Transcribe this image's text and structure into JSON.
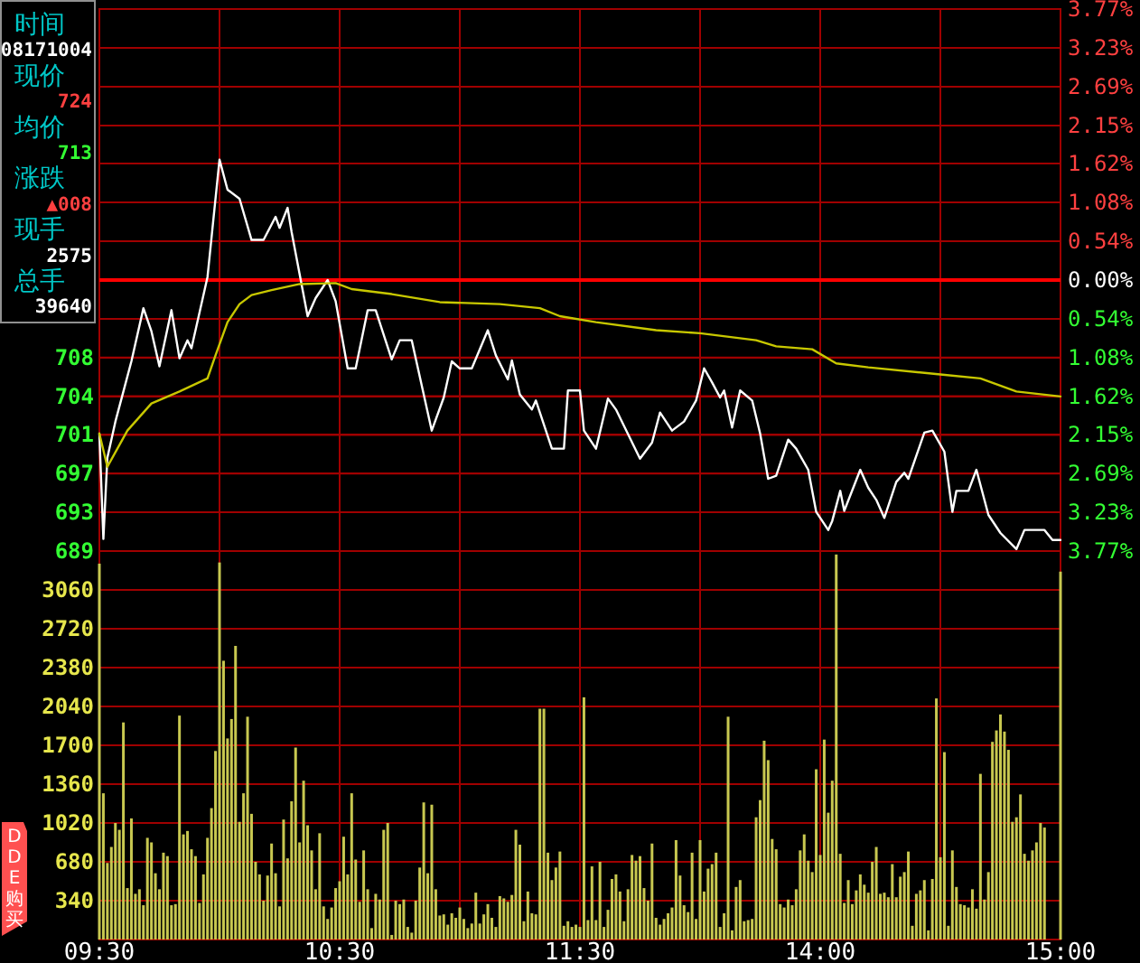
{
  "chart_data": [
    {
      "type": "line",
      "ylim": [
        689,
        743
      ],
      "yticks": [
        689,
        {
          "value": 692.86,
          "label": "693"
        },
        {
          "value": 696.71,
          "label": "697"
        },
        {
          "value": 700.57,
          "label": "701"
        },
        {
          "value": 704.43,
          "label": "704"
        },
        {
          "value": 708.29,
          "label": "708"
        }
      ],
      "y2lim": [
        -3.77,
        3.77
      ],
      "y2ticks": [
        {
          "value": -3.77,
          "label": "3.77%"
        },
        {
          "value": -3.23,
          "label": "3.23%"
        },
        {
          "value": -2.69,
          "label": "2.69%"
        },
        {
          "value": -2.15,
          "label": "2.15%"
        },
        {
          "value": -1.62,
          "label": "1.62%"
        },
        {
          "value": -1.08,
          "label": "1.08%"
        },
        {
          "value": -0.54,
          "label": "0.54%"
        },
        {
          "value": 0,
          "label": "0.00%"
        },
        {
          "value": 0.54,
          "label": "0.54%"
        },
        {
          "value": 1.08,
          "label": "1.08%"
        },
        {
          "value": 1.62,
          "label": "1.62%"
        },
        {
          "value": 2.15,
          "label": "2.15%"
        },
        {
          "value": 2.69,
          "label": "2.69%"
        },
        {
          "value": 3.23,
          "label": "3.23%"
        },
        {
          "value": 3.77,
          "label": "3.77%"
        }
      ],
      "grid": true,
      "tick_labels": "y",
      "series": [
        {
          "color": "#ffffff",
          "values": [
            700.7,
            690.2,
            698.3,
            null,
            701.9,
            null,
            704.9,
            null,
            707.9,
            null,
            null,
            713.2,
            null,
            710.9,
            null,
            707.4,
            null,
            null,
            713,
            null,
            708.2,
            null,
            710,
            709.2,
            null,
            null,
            null,
            716.3,
            null,
            null,
            728,
            null,
            725,
            null,
            null,
            724.1,
            null,
            null,
            720,
            null,
            null,
            720,
            null,
            null,
            722.3,
            721.2,
            null,
            723.2,
            720.8,
            null,
            null,
            null,
            712.4,
            null,
            714.2,
            null,
            null,
            716,
            null,
            713.9,
            null,
            null,
            707.2,
            null,
            707.2,
            null,
            null,
            713,
            null,
            713,
            null,
            null,
            null,
            708.1,
            null,
            710,
            null,
            null,
            710,
            null,
            null,
            null,
            null,
            701,
            null,
            null,
            704.3,
            null,
            707.9,
            null,
            707.2,
            null,
            null,
            707.2,
            null,
            null,
            null,
            711,
            null,
            708.5,
            null,
            null,
            706.1,
            708,
            null,
            704.6,
            null,
            null,
            703.1,
            704,
            null,
            null,
            null,
            699.2,
            null,
            null,
            699.2,
            705,
            null,
            null,
            705,
            701,
            null,
            null,
            699.2,
            null,
            null,
            704.2,
            null,
            703.1,
            null,
            null,
            null,
            null,
            null,
            698.2,
            null,
            null,
            699.8,
            null,
            702.8,
            null,
            null,
            701,
            null,
            null,
            701.9,
            null,
            null,
            704,
            null,
            707.2,
            null,
            705.8,
            null,
            704.3,
            705,
            null,
            701.3,
            null,
            705,
            null,
            null,
            704,
            null,
            700.7,
            null,
            696.2,
            null,
            696.5,
            null,
            null,
            700.1,
            null,
            699.2,
            null,
            null,
            697.1,
            null,
            692.9,
            null,
            null,
            691.1,
            692,
            null,
            695,
            693,
            null,
            null,
            null,
            697.1,
            null,
            695.3,
            null,
            694.1,
            null,
            692.3,
            null,
            null,
            695.9,
            null,
            696.8,
            696.2,
            null,
            null,
            null,
            700.8,
            null,
            701,
            null,
            null,
            698.9,
            null,
            692.9,
            695,
            null,
            null,
            695,
            null,
            697.1,
            null,
            null,
            692.6,
            null,
            null,
            690.8,
            null,
            null,
            null,
            689.2,
            null,
            691.1,
            null,
            null,
            null,
            null,
            691.1,
            null,
            690.1,
            null,
            690.1
          ]
        },
        {
          "color": "#c8c800",
          "values": [
            700.7,
            null,
            697.4,
            null,
            null,
            null,
            null,
            701,
            null,
            null,
            null,
            null,
            null,
            703.7,
            null,
            null,
            null,
            null,
            null,
            null,
            704.9,
            null,
            null,
            null,
            null,
            null,
            null,
            706.2,
            null,
            708.5,
            null,
            null,
            711.8,
            null,
            null,
            713.6,
            null,
            null,
            714.5,
            null,
            null,
            null,
            null,
            715,
            null,
            null,
            null,
            null,
            null,
            null,
            715.6,
            null,
            null,
            null,
            null,
            null,
            null,
            null,
            null,
            715.7,
            null,
            null,
            null,
            715.1,
            null,
            null,
            null,
            null,
            null,
            null,
            null,
            null,
            null,
            714.6,
            null,
            null,
            null,
            null,
            null,
            null,
            null,
            null,
            null,
            null,
            null,
            713.8,
            null,
            null,
            null,
            null,
            null,
            null,
            null,
            null,
            null,
            null,
            null,
            null,
            null,
            null,
            713.6,
            null,
            null,
            null,
            null,
            null,
            null,
            null,
            null,
            null,
            713.2,
            null,
            null,
            null,
            null,
            712.4,
            null,
            null,
            null,
            null,
            null,
            null,
            null,
            null,
            711.8,
            null,
            null,
            null,
            null,
            null,
            null,
            null,
            null,
            null,
            null,
            null,
            null,
            null,
            null,
            711,
            null,
            null,
            null,
            null,
            null,
            null,
            null,
            null,
            null,
            null,
            710.7,
            null,
            null,
            null,
            null,
            null,
            null,
            null,
            null,
            null,
            null,
            null,
            null,
            null,
            710,
            null,
            null,
            null,
            null,
            709.4,
            null,
            null,
            null,
            null,
            null,
            null,
            null,
            null,
            709.1,
            null,
            null,
            null,
            null,
            null,
            707.7,
            null,
            null,
            null,
            null,
            null,
            null,
            null,
            707.3,
            null,
            null,
            null,
            null,
            null,
            null,
            null,
            null,
            null,
            null,
            null,
            null,
            null,
            null,
            null,
            null,
            null,
            706.6,
            null,
            null,
            null,
            null,
            null,
            null,
            null,
            null,
            null,
            706.2,
            null,
            null,
            null,
            null,
            null,
            null,
            null,
            null,
            704.9,
            null,
            null,
            null,
            null,
            null,
            null,
            null,
            null,
            null,
            null,
            704.4
          ]
        }
      ],
      "ref_lines": [
        {
          "axis": "y2",
          "value": 0,
          "color": "#ff0000"
        }
      ],
      "annotations": [
        "时间",
        "08171004",
        "现价",
        "724",
        "均价",
        "713",
        "涨跌",
        "▲008",
        "现手",
        "2575",
        "总手",
        "39640"
      ]
    },
    {
      "type": "bar",
      "color": "#c8c850",
      "categories": [
        "09:30",
        null,
        null,
        null,
        null,
        null,
        null,
        null,
        null,
        null,
        null,
        null,
        null,
        null,
        null,
        null,
        null,
        null,
        null,
        null,
        null,
        null,
        null,
        null,
        null,
        null,
        null,
        null,
        null,
        null,
        null,
        null,
        null,
        null,
        null,
        null,
        null,
        null,
        null,
        null,
        null,
        null,
        null,
        null,
        null,
        null,
        null,
        null,
        null,
        null,
        null,
        null,
        null,
        null,
        null,
        null,
        null,
        null,
        null,
        null,
        "10:30",
        null,
        null,
        null,
        null,
        null,
        null,
        null,
        null,
        null,
        null,
        null,
        null,
        null,
        null,
        null,
        null,
        null,
        null,
        null,
        null,
        null,
        null,
        null,
        null,
        null,
        null,
        null,
        null,
        null,
        null,
        null,
        null,
        null,
        null,
        null,
        null,
        null,
        null,
        null,
        null,
        null,
        null,
        null,
        null,
        null,
        null,
        null,
        null,
        null,
        null,
        null,
        null,
        null,
        null,
        null,
        null,
        null,
        null,
        null,
        "11:30",
        null,
        null,
        null,
        null,
        null,
        null,
        null,
        null,
        null,
        null,
        null,
        null,
        null,
        null,
        null,
        null,
        null,
        null,
        null,
        null,
        null,
        null,
        null,
        null,
        null,
        null,
        null,
        null,
        null,
        null,
        null,
        null,
        null,
        null,
        null,
        null,
        null,
        null,
        null,
        null,
        null,
        null,
        null,
        null,
        null,
        null,
        null,
        null,
        null,
        null,
        null,
        null,
        null,
        null,
        null,
        null,
        null,
        null,
        null,
        "14:00",
        null,
        null,
        null,
        null,
        null,
        null,
        null,
        null,
        null,
        null,
        null,
        null,
        null,
        null,
        null,
        null,
        null,
        null,
        null,
        null,
        null,
        null,
        null,
        null,
        null,
        null,
        null,
        null,
        null,
        null,
        null,
        null,
        null,
        null,
        null,
        null,
        null,
        null,
        null,
        null,
        null,
        null,
        null,
        null,
        null,
        null,
        null,
        null,
        null,
        null,
        null,
        null,
        null,
        null,
        null,
        null,
        null,
        null,
        null,
        "15:00"
      ],
      "ylim": [
        0,
        3400
      ],
      "yticks": [
        340,
        680,
        1020,
        1360,
        1700,
        2040,
        2380,
        2720,
        3060
      ],
      "grid": true,
      "values": [
        3290,
        1280,
        670,
        810,
        1020,
        960,
        1900,
        450,
        1060,
        400,
        440,
        300,
        890,
        850,
        580,
        440,
        760,
        730,
        300,
        310,
        1960,
        920,
        950,
        790,
        730,
        320,
        570,
        890,
        1150,
        1650,
        3300,
        2440,
        1760,
        1930,
        2570,
        1030,
        1280,
        1950,
        1100,
        680,
        570,
        340,
        560,
        840,
        580,
        290,
        1050,
        710,
        1210,
        1680,
        850,
        1390,
        1000,
        780,
        440,
        930,
        290,
        180,
        280,
        450,
        510,
        900,
        570,
        1280,
        700,
        330,
        780,
        440,
        100,
        400,
        350,
        960,
        1020,
        40,
        340,
        310,
        350,
        110,
        60,
        340,
        630,
        1200,
        580,
        1180,
        440,
        210,
        220,
        130,
        230,
        190,
        280,
        180,
        100,
        140,
        410,
        140,
        220,
        310,
        190,
        110,
        380,
        360,
        330,
        390,
        960,
        830,
        160,
        420,
        230,
        220,
        2020,
        2020,
        760,
        520,
        630,
        770,
        120,
        160,
        110,
        130,
        110,
        2120,
        170,
        640,
        170,
        680,
        110,
        260,
        530,
        570,
        420,
        160,
        440,
        740,
        690,
        730,
        450,
        340,
        840,
        190,
        130,
        180,
        230,
        280,
        870,
        560,
        300,
        240,
        760,
        180,
        870,
        420,
        620,
        660,
        760,
        110,
        230,
        1950,
        80,
        460,
        520,
        160,
        170,
        180,
        1070,
        1220,
        1740,
        1570,
        880,
        790,
        310,
        280,
        350,
        300,
        440,
        780,
        920,
        690,
        590,
        1490,
        740,
        1750,
        1110,
        1390,
        3370,
        750,
        320,
        520,
        310,
        430,
        570,
        480,
        410,
        680,
        810,
        400,
        410,
        370,
        660,
        370,
        550,
        590,
        770,
        120,
        400,
        430,
        520,
        80,
        530,
        2110,
        720,
        1640,
        120,
        780,
        460,
        310,
        300,
        280,
        440,
        270,
        1450,
        350,
        590,
        1730,
        1830,
        1970,
        1820,
        1660,
        1030,
        1070,
        1270,
        750,
        690,
        780,
        850,
        1020,
        980,
        null,
        null,
        null,
        3220
      ],
      "annotations": [
        "DDE购买"
      ]
    }
  ]
}
